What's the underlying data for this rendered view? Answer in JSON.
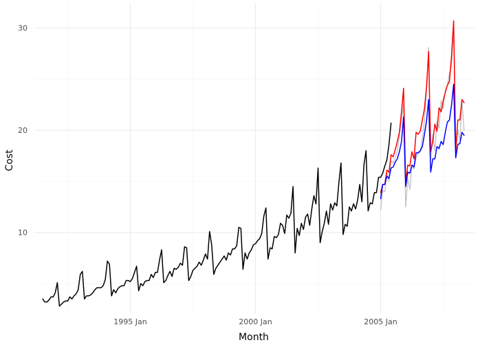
{
  "chart_data": {
    "type": "line",
    "title": "",
    "xlabel": "Month",
    "ylabel": "Cost",
    "x_ticks": [
      "1995 Jan",
      "2000 Jan",
      "2005 Jan"
    ],
    "y_ticks": [
      10,
      20,
      30
    ],
    "xlim": [
      "1991-03",
      "2008-10"
    ],
    "ylim": [
      2.1,
      32.4
    ],
    "grid": true,
    "legend": "none",
    "series": [
      {
        "color": "#000000",
        "x_start": "1991-07",
        "values": [
          3.5,
          3.2,
          3.2,
          3.4,
          3.7,
          3.7,
          4.1,
          5.1,
          2.8,
          3.0,
          3.2,
          3.3,
          3.3,
          3.7,
          3.5,
          3.8,
          4.0,
          4.4,
          5.9,
          6.2,
          3.5,
          3.8,
          3.8,
          3.9,
          4.1,
          4.4,
          4.6,
          4.6,
          4.6,
          4.8,
          5.4,
          7.2,
          6.9,
          3.8,
          4.4,
          4.1,
          4.5,
          4.7,
          4.8,
          4.8,
          5.3,
          5.3,
          5.2,
          5.5,
          6.1,
          6.7,
          4.3,
          5.0,
          4.8,
          5.2,
          5.3,
          5.3,
          5.9,
          5.6,
          6.1,
          6.1,
          7.3,
          8.3,
          5.1,
          5.3,
          5.8,
          6.2,
          5.7,
          6.5,
          6.4,
          6.6,
          7.0,
          6.8,
          8.6,
          8.5,
          5.3,
          5.7,
          6.3,
          6.5,
          6.7,
          7.1,
          6.8,
          7.3,
          7.9,
          7.4,
          10.1,
          8.8,
          5.9,
          6.5,
          6.8,
          7.1,
          7.4,
          7.7,
          7.3,
          8.0,
          7.8,
          8.4,
          8.4,
          8.7,
          10.5,
          10.4,
          6.4,
          8.0,
          7.4,
          8.0,
          8.3,
          8.8,
          8.9,
          9.2,
          9.4,
          9.9,
          11.6,
          12.4,
          7.4,
          8.5,
          8.4,
          9.6,
          9.5,
          9.8,
          10.9,
          10.7,
          9.9,
          11.7,
          11.4,
          11.9,
          14.5,
          8.0,
          10.4,
          9.7,
          10.9,
          10.3,
          11.5,
          11.8,
          10.7,
          12.3,
          13.6,
          12.8,
          16.3,
          9.0,
          10.1,
          10.9,
          12.1,
          10.8,
          12.8,
          12.2,
          12.9,
          12.6,
          14.9,
          16.8,
          9.8,
          10.8,
          10.6,
          12.5,
          12.1,
          12.8,
          12.3,
          13.2,
          14.7,
          13.0,
          16.6,
          18.0,
          12.1,
          12.9,
          12.8,
          13.9,
          13.9,
          15.4,
          15.4,
          15.8,
          16.5,
          17.1,
          18.6,
          20.7
        ]
      },
      {
        "color": "#c0c0c0",
        "x_start": "2005-01",
        "values": [
          12.2,
          14.1,
          14.0,
          15.8,
          15.0,
          17.0,
          16.8,
          17.3,
          18.0,
          19.4,
          21.0,
          22.6,
          12.5,
          15.3,
          14.2,
          16.5,
          16.2,
          17.3,
          17.7,
          17.9,
          19.2,
          20.9,
          23.8,
          28.1,
          17.2,
          19.6,
          18.0,
          20.9,
          20.2,
          22.9,
          22.1,
          23.9,
          24.4,
          25.6,
          26.3,
          30.0,
          18.0,
          20.0,
          19.0,
          22.8,
          20.0
        ]
      },
      {
        "color": "#ff0000",
        "x_start": "2005-01",
        "values": [
          13.9,
          14.7,
          14.7,
          16.1,
          15.9,
          17.6,
          17.4,
          18.1,
          18.9,
          19.8,
          21.8,
          24.1,
          14.8,
          16.6,
          16.5,
          17.9,
          17.2,
          19.8,
          19.6,
          19.9,
          21.0,
          22.1,
          24.2,
          27.7,
          17.9,
          18.9,
          20.6,
          19.9,
          22.2,
          21.8,
          22.9,
          23.7,
          24.4,
          24.8,
          27.3,
          30.7,
          17.9,
          21.0,
          21.0,
          23.0,
          22.7
        ]
      },
      {
        "color": "#0000ff",
        "x_start": "2005-01",
        "values": [
          13.3,
          14.7,
          14.7,
          15.5,
          15.3,
          16.3,
          16.4,
          16.9,
          17.2,
          17.9,
          18.9,
          21.3,
          14.5,
          15.9,
          15.8,
          16.6,
          16.4,
          17.8,
          17.8,
          18.0,
          18.4,
          19.6,
          20.9,
          23.0,
          15.9,
          17.2,
          17.2,
          18.4,
          18.2,
          18.9,
          18.6,
          19.8,
          20.8,
          21.0,
          22.5,
          24.5,
          17.3,
          18.6,
          18.7,
          19.8,
          19.5
        ]
      }
    ]
  }
}
